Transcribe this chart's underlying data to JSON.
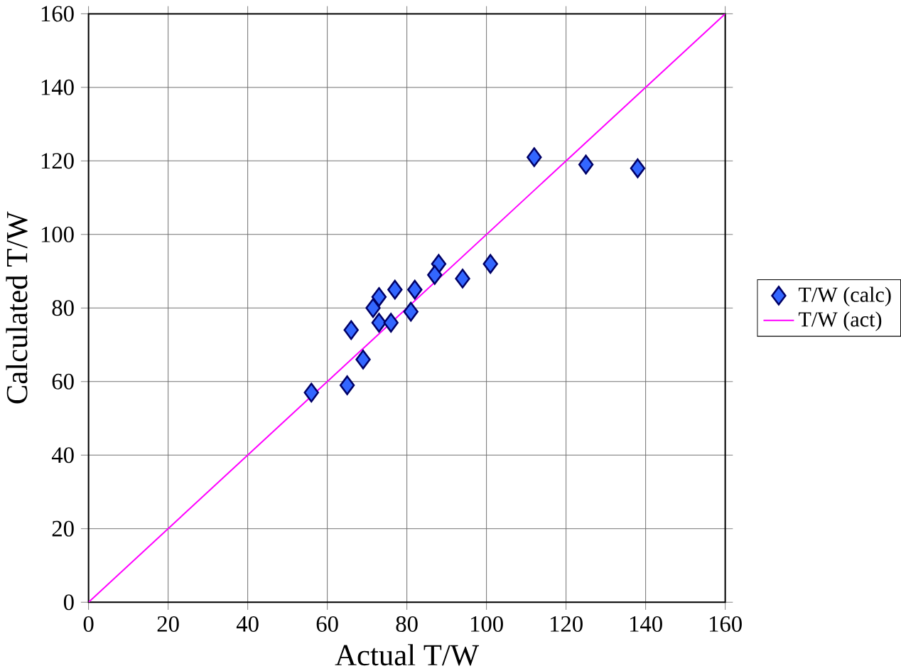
{
  "chart_data": {
    "type": "scatter",
    "xlabel": "Actual T/W",
    "ylabel": "Calculated T/W",
    "xlim": [
      0,
      160
    ],
    "ylim": [
      0,
      160
    ],
    "xticks": [
      0,
      20,
      40,
      60,
      80,
      100,
      120,
      140,
      160
    ],
    "yticks": [
      0,
      20,
      40,
      60,
      80,
      100,
      120,
      140,
      160
    ],
    "grid": true,
    "legend": "right",
    "series": [
      {
        "name": "T/W (calc)",
        "marker": "diamond",
        "color": "#3366ff",
        "x": [
          56,
          65,
          69,
          66,
          73,
          77,
          82,
          73,
          76,
          81,
          71.5,
          88,
          87,
          94,
          101,
          112,
          125,
          138
        ],
        "values": [
          57,
          59,
          66,
          74,
          83,
          85,
          85,
          76,
          76,
          79,
          80,
          92,
          89,
          88,
          92,
          121,
          119,
          118
        ]
      },
      {
        "name": "T/W (act)",
        "type": "line",
        "marker": "none",
        "color": "#ff00ff",
        "x": [
          0,
          160
        ],
        "values": [
          0,
          160
        ]
      }
    ]
  }
}
